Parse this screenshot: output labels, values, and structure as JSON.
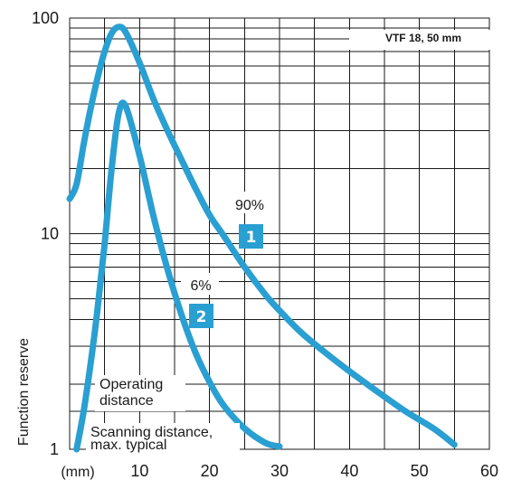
{
  "chart_data": {
    "type": "line",
    "title": "VTF 18, 50 mm",
    "ylabel": "Function reserve",
    "x_unit_label": "(mm)",
    "yscale": "log",
    "xlim": [
      0,
      60
    ],
    "ylim": [
      1,
      100
    ],
    "x_ticks": [
      "10",
      "20",
      "30",
      "40",
      "50",
      "60"
    ],
    "y_ticks": [
      "1",
      "10",
      "100"
    ],
    "threshold": {
      "y": 1.5,
      "labels": [
        "Operating",
        "distance",
        "Scanning distance,",
        "max. typical"
      ]
    },
    "series": [
      {
        "name": "90%",
        "marker": "1",
        "color": "#2a9fd2",
        "x": [
          0,
          1,
          2,
          3,
          4,
          5,
          6,
          7,
          8,
          10,
          12,
          14,
          16,
          18,
          20,
          22,
          25,
          28,
          30,
          33,
          36,
          40,
          44,
          48,
          52,
          55
        ],
        "y": [
          14.5,
          17,
          26,
          38,
          53,
          70,
          85,
          91,
          86,
          62,
          42,
          30,
          22,
          16.2,
          12.2,
          9.8,
          7,
          5.2,
          4.4,
          3.5,
          2.9,
          2.3,
          1.85,
          1.5,
          1.25,
          1.05
        ]
      },
      {
        "name": "6%",
        "marker": "2",
        "color": "#2a9fd2",
        "x": [
          1,
          2,
          3,
          4,
          5,
          6,
          7,
          8,
          10,
          12,
          14,
          16,
          18,
          20,
          22,
          25,
          28,
          30
        ],
        "y": [
          1,
          1.5,
          2.5,
          4.5,
          9,
          20,
          36,
          39,
          23,
          12,
          6.8,
          4.2,
          2.8,
          2.05,
          1.6,
          1.25,
          1.07,
          1.03
        ]
      }
    ]
  }
}
